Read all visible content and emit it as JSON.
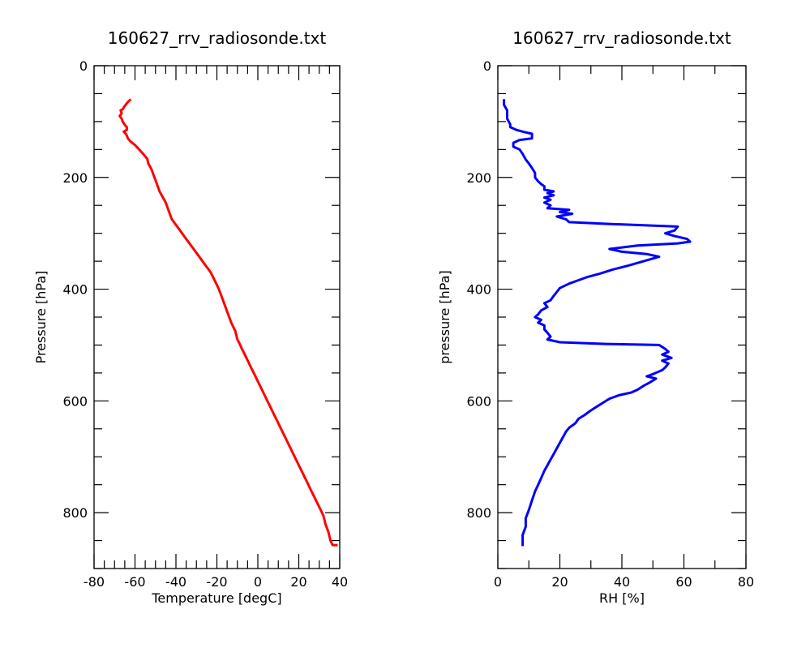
{
  "chart_data": [
    {
      "type": "line",
      "title": "160627_rrv_radiosonde.txt",
      "xlabel": "Temperature [degC]",
      "ylabel": "Pressure [hPa]",
      "xlim": [
        -80,
        40
      ],
      "ylim": [
        900,
        0
      ],
      "y_inverted": true,
      "xticks": [
        -80,
        -60,
        -40,
        -20,
        0,
        20,
        40
      ],
      "yticks": [
        0,
        200,
        400,
        600,
        800
      ],
      "x_minor_step": 5,
      "y_minor_step": 50,
      "grid": false,
      "series": [
        {
          "color": "#ff0000",
          "points": [
            [
              -62,
              60
            ],
            [
              -63.5,
              65
            ],
            [
              -65,
              72
            ],
            [
              -66,
              78
            ],
            [
              -67,
              80
            ],
            [
              -66.5,
              85
            ],
            [
              -67.5,
              90
            ],
            [
              -66.5,
              95
            ],
            [
              -66,
              100
            ],
            [
              -65,
              106
            ],
            [
              -64,
              110
            ],
            [
              -64,
              115
            ],
            [
              -65.5,
              118
            ],
            [
              -64.5,
              122
            ],
            [
              -64,
              125
            ],
            [
              -63.5,
              130
            ],
            [
              -62,
              136
            ],
            [
              -60,
              142
            ],
            [
              -58,
              150
            ],
            [
              -56,
              158
            ],
            [
              -54,
              167
            ],
            [
              -53.5,
              175
            ],
            [
              -52,
              185
            ],
            [
              -51,
              195
            ],
            [
              -50,
              205
            ],
            [
              -49,
              215
            ],
            [
              -48,
              225
            ],
            [
              -46.5,
              235
            ],
            [
              -45,
              245
            ],
            [
              -44,
              255
            ],
            [
              -43,
              265
            ],
            [
              -42,
              275
            ],
            [
              -40,
              285
            ],
            [
              -38,
              295
            ],
            [
              -35,
              310
            ],
            [
              -32,
              325
            ],
            [
              -29,
              340
            ],
            [
              -26,
              355
            ],
            [
              -23,
              370
            ],
            [
              -21,
              385
            ],
            [
              -19,
              400
            ],
            [
              -17.5,
              415
            ],
            [
              -16,
              430
            ],
            [
              -14.5,
              445
            ],
            [
              -13,
              460
            ],
            [
              -11,
              475
            ],
            [
              -10,
              490
            ],
            [
              -9,
              497
            ],
            [
              -8,
              505
            ],
            [
              -6,
              520
            ],
            [
              -4,
              535
            ],
            [
              -2,
              550
            ],
            [
              0,
              565
            ],
            [
              2,
              580
            ],
            [
              4,
              595
            ],
            [
              6,
              610
            ],
            [
              8,
              625
            ],
            [
              10,
              640
            ],
            [
              12,
              655
            ],
            [
              14,
              670
            ],
            [
              16,
              685
            ],
            [
              18,
              700
            ],
            [
              20,
              715
            ],
            [
              22,
              730
            ],
            [
              24,
              745
            ],
            [
              26,
              760
            ],
            [
              28,
              775
            ],
            [
              30,
              790
            ],
            [
              32,
              805
            ],
            [
              33,
              820
            ],
            [
              34.5,
              835
            ],
            [
              35.5,
              850
            ],
            [
              36.5,
              858
            ],
            [
              39,
              858
            ]
          ]
        }
      ]
    },
    {
      "type": "line",
      "title": "160627_rrv_radiosonde.txt",
      "xlabel": "RH [%]",
      "ylabel": "pressure [hPa]",
      "xlim": [
        0,
        80
      ],
      "ylim": [
        900,
        0
      ],
      "y_inverted": true,
      "xticks": [
        0,
        20,
        40,
        60,
        80
      ],
      "yticks": [
        0,
        200,
        400,
        600,
        800
      ],
      "x_minor_step": 10,
      "y_minor_step": 50,
      "grid": false,
      "series": [
        {
          "color": "#0000ff",
          "points": [
            [
              2,
              60
            ],
            [
              2,
              70
            ],
            [
              3,
              80
            ],
            [
              3,
              95
            ],
            [
              4,
              105
            ],
            [
              4,
              110
            ],
            [
              6,
              115
            ],
            [
              8,
              118
            ],
            [
              11,
              122
            ],
            [
              11,
              130
            ],
            [
              7,
              133
            ],
            [
              5,
              138
            ],
            [
              5,
              145
            ],
            [
              7,
              150
            ],
            [
              8,
              158
            ],
            [
              9,
              168
            ],
            [
              10,
              175
            ],
            [
              11,
              183
            ],
            [
              12,
              192
            ],
            [
              12,
              200
            ],
            [
              13,
              207
            ],
            [
              14,
              212
            ],
            [
              15,
              216
            ],
            [
              15,
              222
            ],
            [
              18,
              225
            ],
            [
              16,
              228
            ],
            [
              18,
              232
            ],
            [
              15,
              236
            ],
            [
              17,
              240
            ],
            [
              15,
              245
            ],
            [
              17,
              250
            ],
            [
              16,
              255
            ],
            [
              23,
              258
            ],
            [
              20,
              262
            ],
            [
              24,
              265
            ],
            [
              19,
              270
            ],
            [
              22,
              275
            ],
            [
              23,
              280
            ],
            [
              35,
              283
            ],
            [
              58,
              288
            ],
            [
              57,
              295
            ],
            [
              54,
              300
            ],
            [
              57,
              305
            ],
            [
              61,
              310
            ],
            [
              62,
              315
            ],
            [
              58,
              318
            ],
            [
              45,
              322
            ],
            [
              36,
              328
            ],
            [
              40,
              333
            ],
            [
              48,
              337
            ],
            [
              52,
              342
            ],
            [
              47,
              350
            ],
            [
              42,
              358
            ],
            [
              37,
              365
            ],
            [
              33,
              372
            ],
            [
              29,
              378
            ],
            [
              26,
              384
            ],
            [
              23,
              390
            ],
            [
              20,
              398
            ],
            [
              19,
              405
            ],
            [
              18,
              412
            ],
            [
              17,
              420
            ],
            [
              15,
              425
            ],
            [
              16,
              432
            ],
            [
              14,
              438
            ],
            [
              13,
              445
            ],
            [
              12,
              450
            ],
            [
              14,
              455
            ],
            [
              13,
              460
            ],
            [
              15,
              465
            ],
            [
              15,
              472
            ],
            [
              16,
              478
            ],
            [
              17,
              485
            ],
            [
              16,
              490
            ],
            [
              20,
              495
            ],
            [
              35,
              498
            ],
            [
              52,
              500
            ],
            [
              54,
              507
            ],
            [
              55,
              512
            ],
            [
              53,
              517
            ],
            [
              56,
              523
            ],
            [
              53,
              528
            ],
            [
              55,
              533
            ],
            [
              54,
              540
            ],
            [
              53,
              545
            ],
            [
              50,
              552
            ],
            [
              48,
              556
            ],
            [
              51,
              560
            ],
            [
              49,
              567
            ],
            [
              47,
              573
            ],
            [
              45,
              580
            ],
            [
              43,
              585
            ],
            [
              39,
              590
            ],
            [
              36,
              596
            ],
            [
              34,
              603
            ],
            [
              32,
              610
            ],
            [
              30,
              617
            ],
            [
              28,
              625
            ],
            [
              26,
              632
            ],
            [
              25,
              640
            ],
            [
              23,
              648
            ],
            [
              22,
              655
            ],
            [
              21,
              665
            ],
            [
              20,
              675
            ],
            [
              19,
              685
            ],
            [
              18,
              695
            ],
            [
              17,
              705
            ],
            [
              16,
              715
            ],
            [
              15,
              725
            ],
            [
              14,
              738
            ],
            [
              13,
              750
            ],
            [
              12,
              762
            ],
            [
              11,
              778
            ],
            [
              10,
              795
            ],
            [
              9,
              810
            ],
            [
              9,
              825
            ],
            [
              8,
              840
            ],
            [
              8,
              860
            ]
          ]
        }
      ]
    }
  ]
}
